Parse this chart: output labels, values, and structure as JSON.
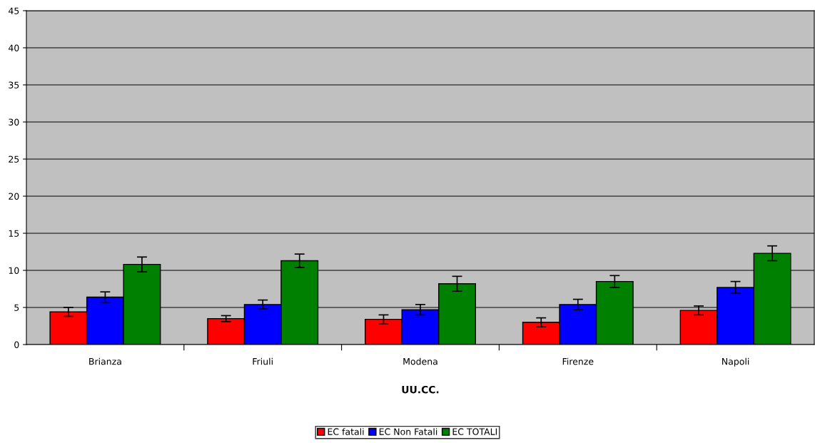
{
  "chart_data": {
    "type": "bar",
    "xlabel": "UU.CC.",
    "categories": [
      "Brianza",
      "Friuli",
      "Modena",
      "Firenze",
      "Napoli"
    ],
    "series": [
      {
        "name": "EC fatali",
        "color": "#ff0000",
        "values": [
          4.4,
          3.5,
          3.4,
          3.0,
          4.6
        ],
        "errors": [
          0.6,
          0.4,
          0.6,
          0.6,
          0.6
        ]
      },
      {
        "name": "EC Non Fatali",
        "color": "#0000ff",
        "values": [
          6.4,
          5.4,
          4.7,
          5.4,
          7.7
        ],
        "errors": [
          0.7,
          0.6,
          0.7,
          0.7,
          0.8
        ]
      },
      {
        "name": "EC TOTALI",
        "color": "#008000",
        "values": [
          10.8,
          11.3,
          8.2,
          8.5,
          12.3
        ],
        "errors": [
          1.0,
          0.9,
          1.0,
          0.8,
          1.0
        ]
      }
    ],
    "ylim": [
      0,
      45
    ],
    "yticks": [
      0,
      5,
      10,
      15,
      20,
      25,
      30,
      35,
      40,
      45
    ],
    "grid": "y",
    "legend": "bottom"
  }
}
